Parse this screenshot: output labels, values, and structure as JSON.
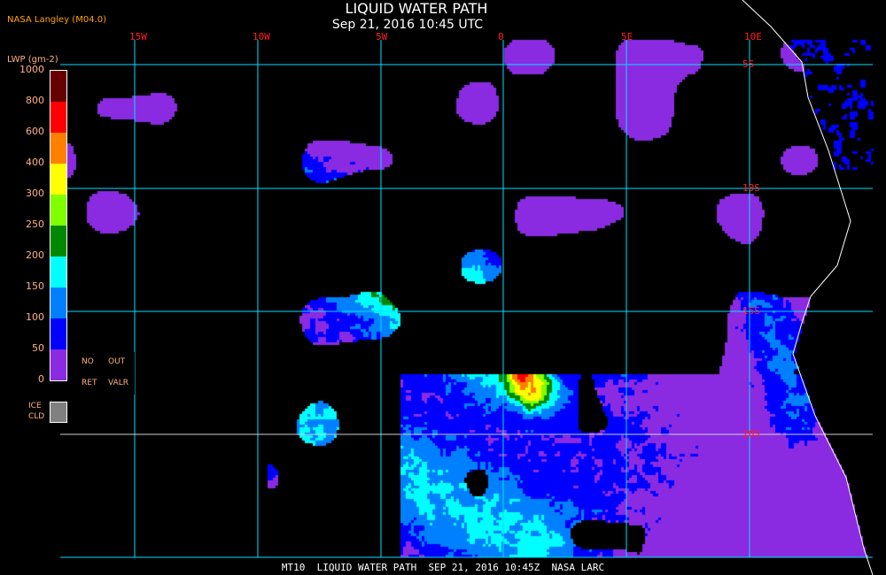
{
  "header": {
    "title": "LIQUID WATER PATH",
    "subtitle": "Sep 21, 2016 10:45 UTC",
    "source": "NASA Langley (M04.0)"
  },
  "grid": {
    "longitudes": [
      "15W",
      "10W",
      "5W",
      "0",
      "5E",
      "10E"
    ],
    "latitudes": [
      "5S",
      "10S",
      "15S",
      "20S"
    ],
    "line_color": "#00e0ff"
  },
  "legend": {
    "title": "LWP (gm-2)",
    "ticks": [
      "0",
      "50",
      "100",
      "150",
      "200",
      "250",
      "300",
      "400",
      "600",
      "800",
      "1000"
    ],
    "colors": [
      "#8a2be2",
      "#0000ff",
      "#0080ff",
      "#00ffff",
      "#008800",
      "#80ff00",
      "#ffff00",
      "#ff8000",
      "#ff0000",
      "#660000"
    ],
    "no_ret": {
      "line1": "NO",
      "line2": "RET"
    },
    "out_valr": {
      "line1": "OUT",
      "line2": "VALR"
    },
    "ice": {
      "line1": "ICE",
      "line2": "CLD",
      "color": "#808080"
    }
  },
  "footer": "MT10  LIQUID WATER PATH  SEP 21, 2016 10:45Z  NASA LARC"
}
